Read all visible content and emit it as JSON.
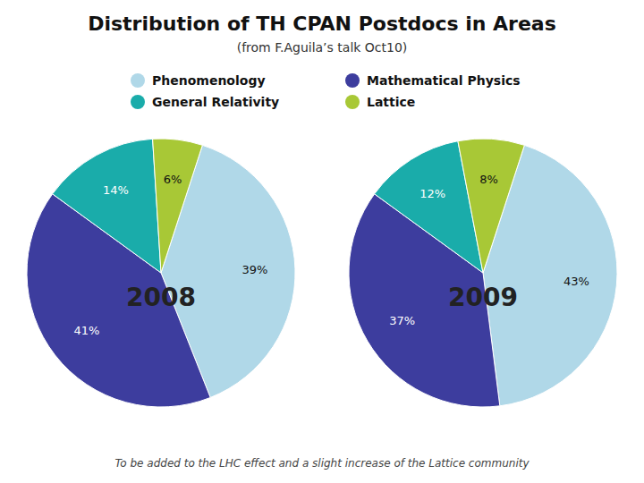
{
  "chart_data": {
    "type": "pie",
    "title": "Distribution of TH CPAN Postdocs in Areas",
    "subtitle": "(from F.Aguila’s talk Oct10)",
    "categories": [
      "Phenomenology",
      "Mathematical Physics",
      "General Relativity",
      "Lattice"
    ],
    "colors": [
      "#b0d8e8",
      "#3d3d9e",
      "#1aacaa",
      "#a8c836"
    ],
    "legend": "top",
    "data_labels": true,
    "series": [
      {
        "name": "2008",
        "values": [
          39,
          41,
          14,
          6
        ],
        "value_labels": [
          "39%",
          "41%",
          "14%",
          "6%"
        ]
      },
      {
        "name": "2009",
        "values": [
          43,
          37,
          12,
          8
        ],
        "value_labels": [
          "43%",
          "37%",
          "12%",
          "8%"
        ]
      }
    ],
    "annotations": [
      "To be added to the LHC effect and a slight increase of the Lattice community"
    ]
  }
}
